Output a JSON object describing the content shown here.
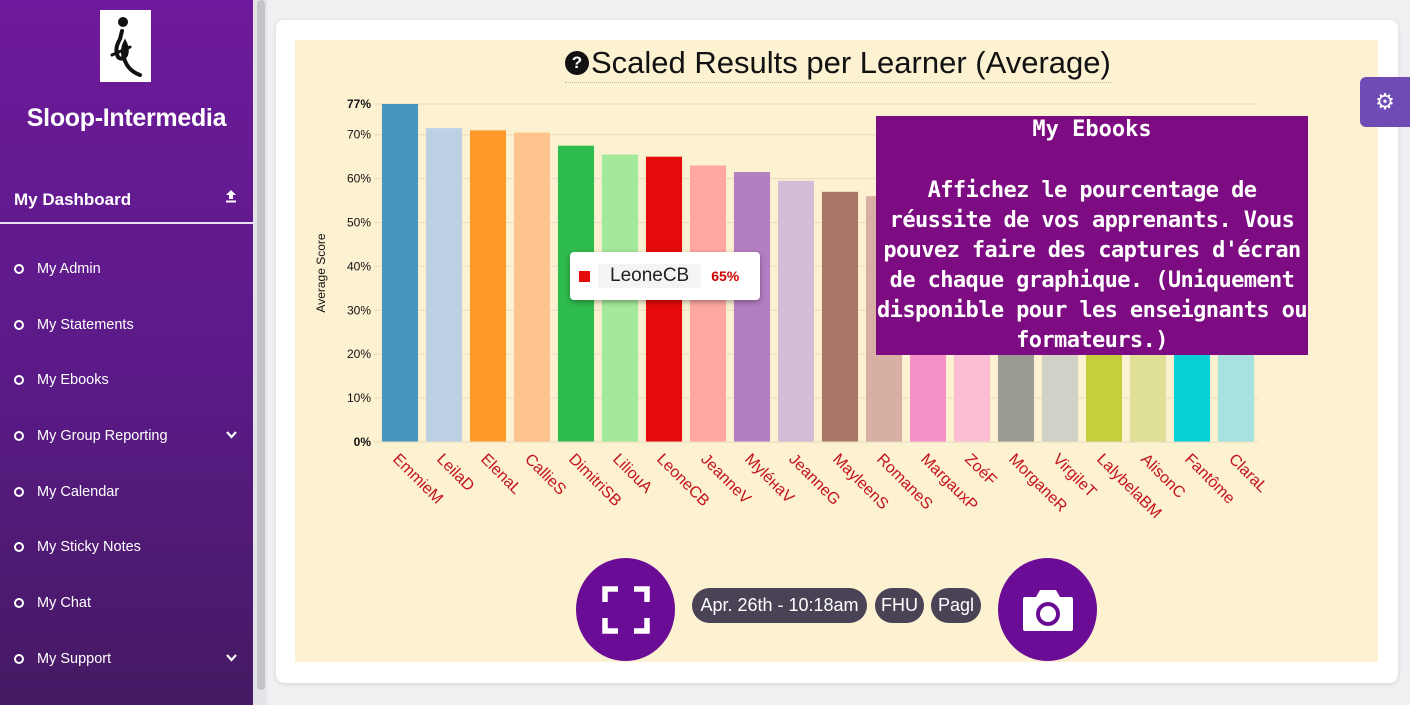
{
  "sidebar": {
    "brand": "Sloop-Intermedia",
    "dashboard_label": "My Dashboard",
    "items": [
      {
        "label": "My Admin",
        "expandable": false
      },
      {
        "label": "My Statements",
        "expandable": false
      },
      {
        "label": "My Ebooks",
        "expandable": false
      },
      {
        "label": "My Group Reporting",
        "expandable": true
      },
      {
        "label": "My Calendar",
        "expandable": false
      },
      {
        "label": "My Sticky Notes",
        "expandable": false
      },
      {
        "label": "My Chat",
        "expandable": false
      },
      {
        "label": "My Support",
        "expandable": true
      }
    ]
  },
  "chart": {
    "help_icon": "question-circle-icon",
    "title": "Scaled Results per Learner (Average)"
  },
  "chart_data": {
    "type": "bar",
    "title": "Scaled Results per Learner (Average)",
    "xlabel": "",
    "ylabel": "Average Score",
    "ylim": [
      0,
      77
    ],
    "y_ticks": [
      "0%",
      "10%",
      "20%",
      "30%",
      "40%",
      "50%",
      "60%",
      "70%",
      "77%"
    ],
    "y_tick_values": [
      0,
      10,
      20,
      30,
      40,
      50,
      60,
      70,
      77
    ],
    "grid": true,
    "categories": [
      "EmmieM",
      "LeilaD",
      "ElenaL",
      "CallieS",
      "DimitriSB",
      "LiliouA",
      "LeoneCB",
      "JeanneV",
      "MyléнaV",
      "JeanneG",
      "MayleenS",
      "RomaneS",
      "MargauxP",
      "ZoéF",
      "MorganeR",
      "VirgileT",
      "LalybelaBM",
      "AlisonC",
      "Fantôme",
      "ClaraL"
    ],
    "values": [
      77,
      71.5,
      71,
      70.5,
      67.5,
      65.5,
      65,
      63,
      61.5,
      59.5,
      57,
      56,
      54,
      50,
      48,
      46,
      44,
      42,
      40,
      38
    ],
    "colors": [
      "#4696c0",
      "#bcd2e4",
      "#ff9a2a",
      "#ffc38d",
      "#2fbc4e",
      "#a4e89a",
      "#e50b0b",
      "#ffa8a2",
      "#b47ec2",
      "#d4bcd6",
      "#a97768",
      "#d8b0a3",
      "#f591c8",
      "#fbbdd3",
      "#9b9b93",
      "#d1d1c8",
      "#c4cf3e",
      "#dfe296",
      "#08d1d8",
      "#a8e2e0"
    ]
  },
  "tooltip": {
    "learner": "LeoneCB",
    "value": "65%",
    "color": "#e50b0b"
  },
  "info_overlay": {
    "title": "My Ebooks",
    "text": "Affichez le pourcentage de réussite de vos apprenants. Vous pouvez faire des captures d'écran de chaque graphique. (Uniquement disponible pour les enseignants ou formateurs.)"
  },
  "footer": {
    "timestamp": "Apr. 26th - 10:18am",
    "tag1": "FHU",
    "tag2": "Pagl"
  },
  "colors": {
    "sidebar_top": "#6e1a9c",
    "sidebar_bottom": "#451a63",
    "overlay": "#7d0b82",
    "button": "#6a0c96",
    "pill": "#4a4356",
    "tick_label": "#c4131b"
  }
}
